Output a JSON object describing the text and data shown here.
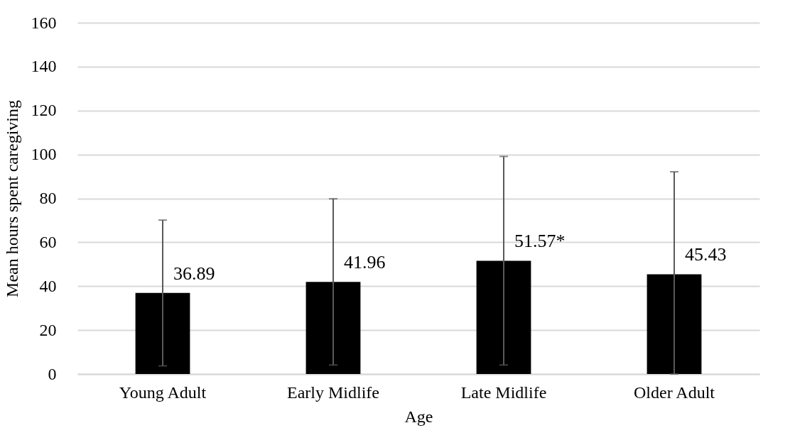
{
  "chart_data": {
    "type": "bar",
    "xlabel": "Age",
    "ylabel": "Mean hours spent caregiving",
    "categories": [
      "Young Adult",
      "Early Midlife",
      "Late Midlife",
      "Older Adult"
    ],
    "values": [
      36.89,
      41.96,
      51.57,
      45.43
    ],
    "color": "#000000",
    "errors": [
      [
        3.7,
        70.1
      ],
      [
        4.1,
        79.8
      ],
      [
        4.1,
        99.1
      ],
      [
        0,
        92.1
      ]
    ],
    "value_labels": [
      "36.89",
      "41.96",
      "51.57*",
      "45.43"
    ],
    "ylim": [
      0,
      160
    ],
    "yticks": [
      0,
      20,
      40,
      60,
      80,
      100,
      120,
      140,
      160
    ],
    "grid": "y"
  }
}
